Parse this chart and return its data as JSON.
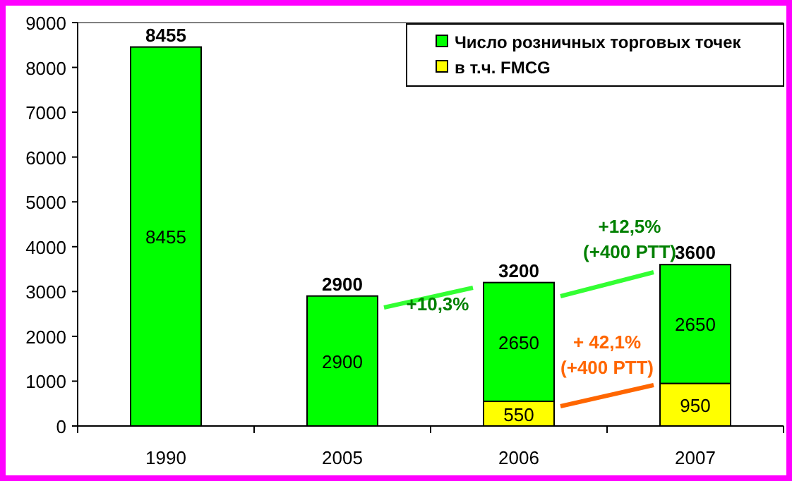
{
  "chart_data": {
    "type": "bar",
    "stacked": true,
    "categories": [
      "1990",
      "2005",
      "2006",
      "2007"
    ],
    "series": [
      {
        "name": "в т.ч. FMCG",
        "color": "#ffff00",
        "values": [
          null,
          null,
          550,
          950
        ]
      },
      {
        "name": "Число розничных торговых точек",
        "color": "#00ff00",
        "values": [
          8455,
          2900,
          2650,
          2650
        ]
      }
    ],
    "totals": [
      "8455",
      "2900",
      "3200",
      "3600"
    ],
    "data_labels": true,
    "ylim": [
      0,
      9000
    ],
    "yticks": [
      0,
      1000,
      2000,
      3000,
      4000,
      5000,
      6000,
      7000,
      8000,
      9000
    ],
    "legend": "top right",
    "annotations": [
      "+10,3%",
      "+12,5%\n(+400 РТТ)",
      "+ 42,1%\n(+400 РТТ)"
    ]
  }
}
